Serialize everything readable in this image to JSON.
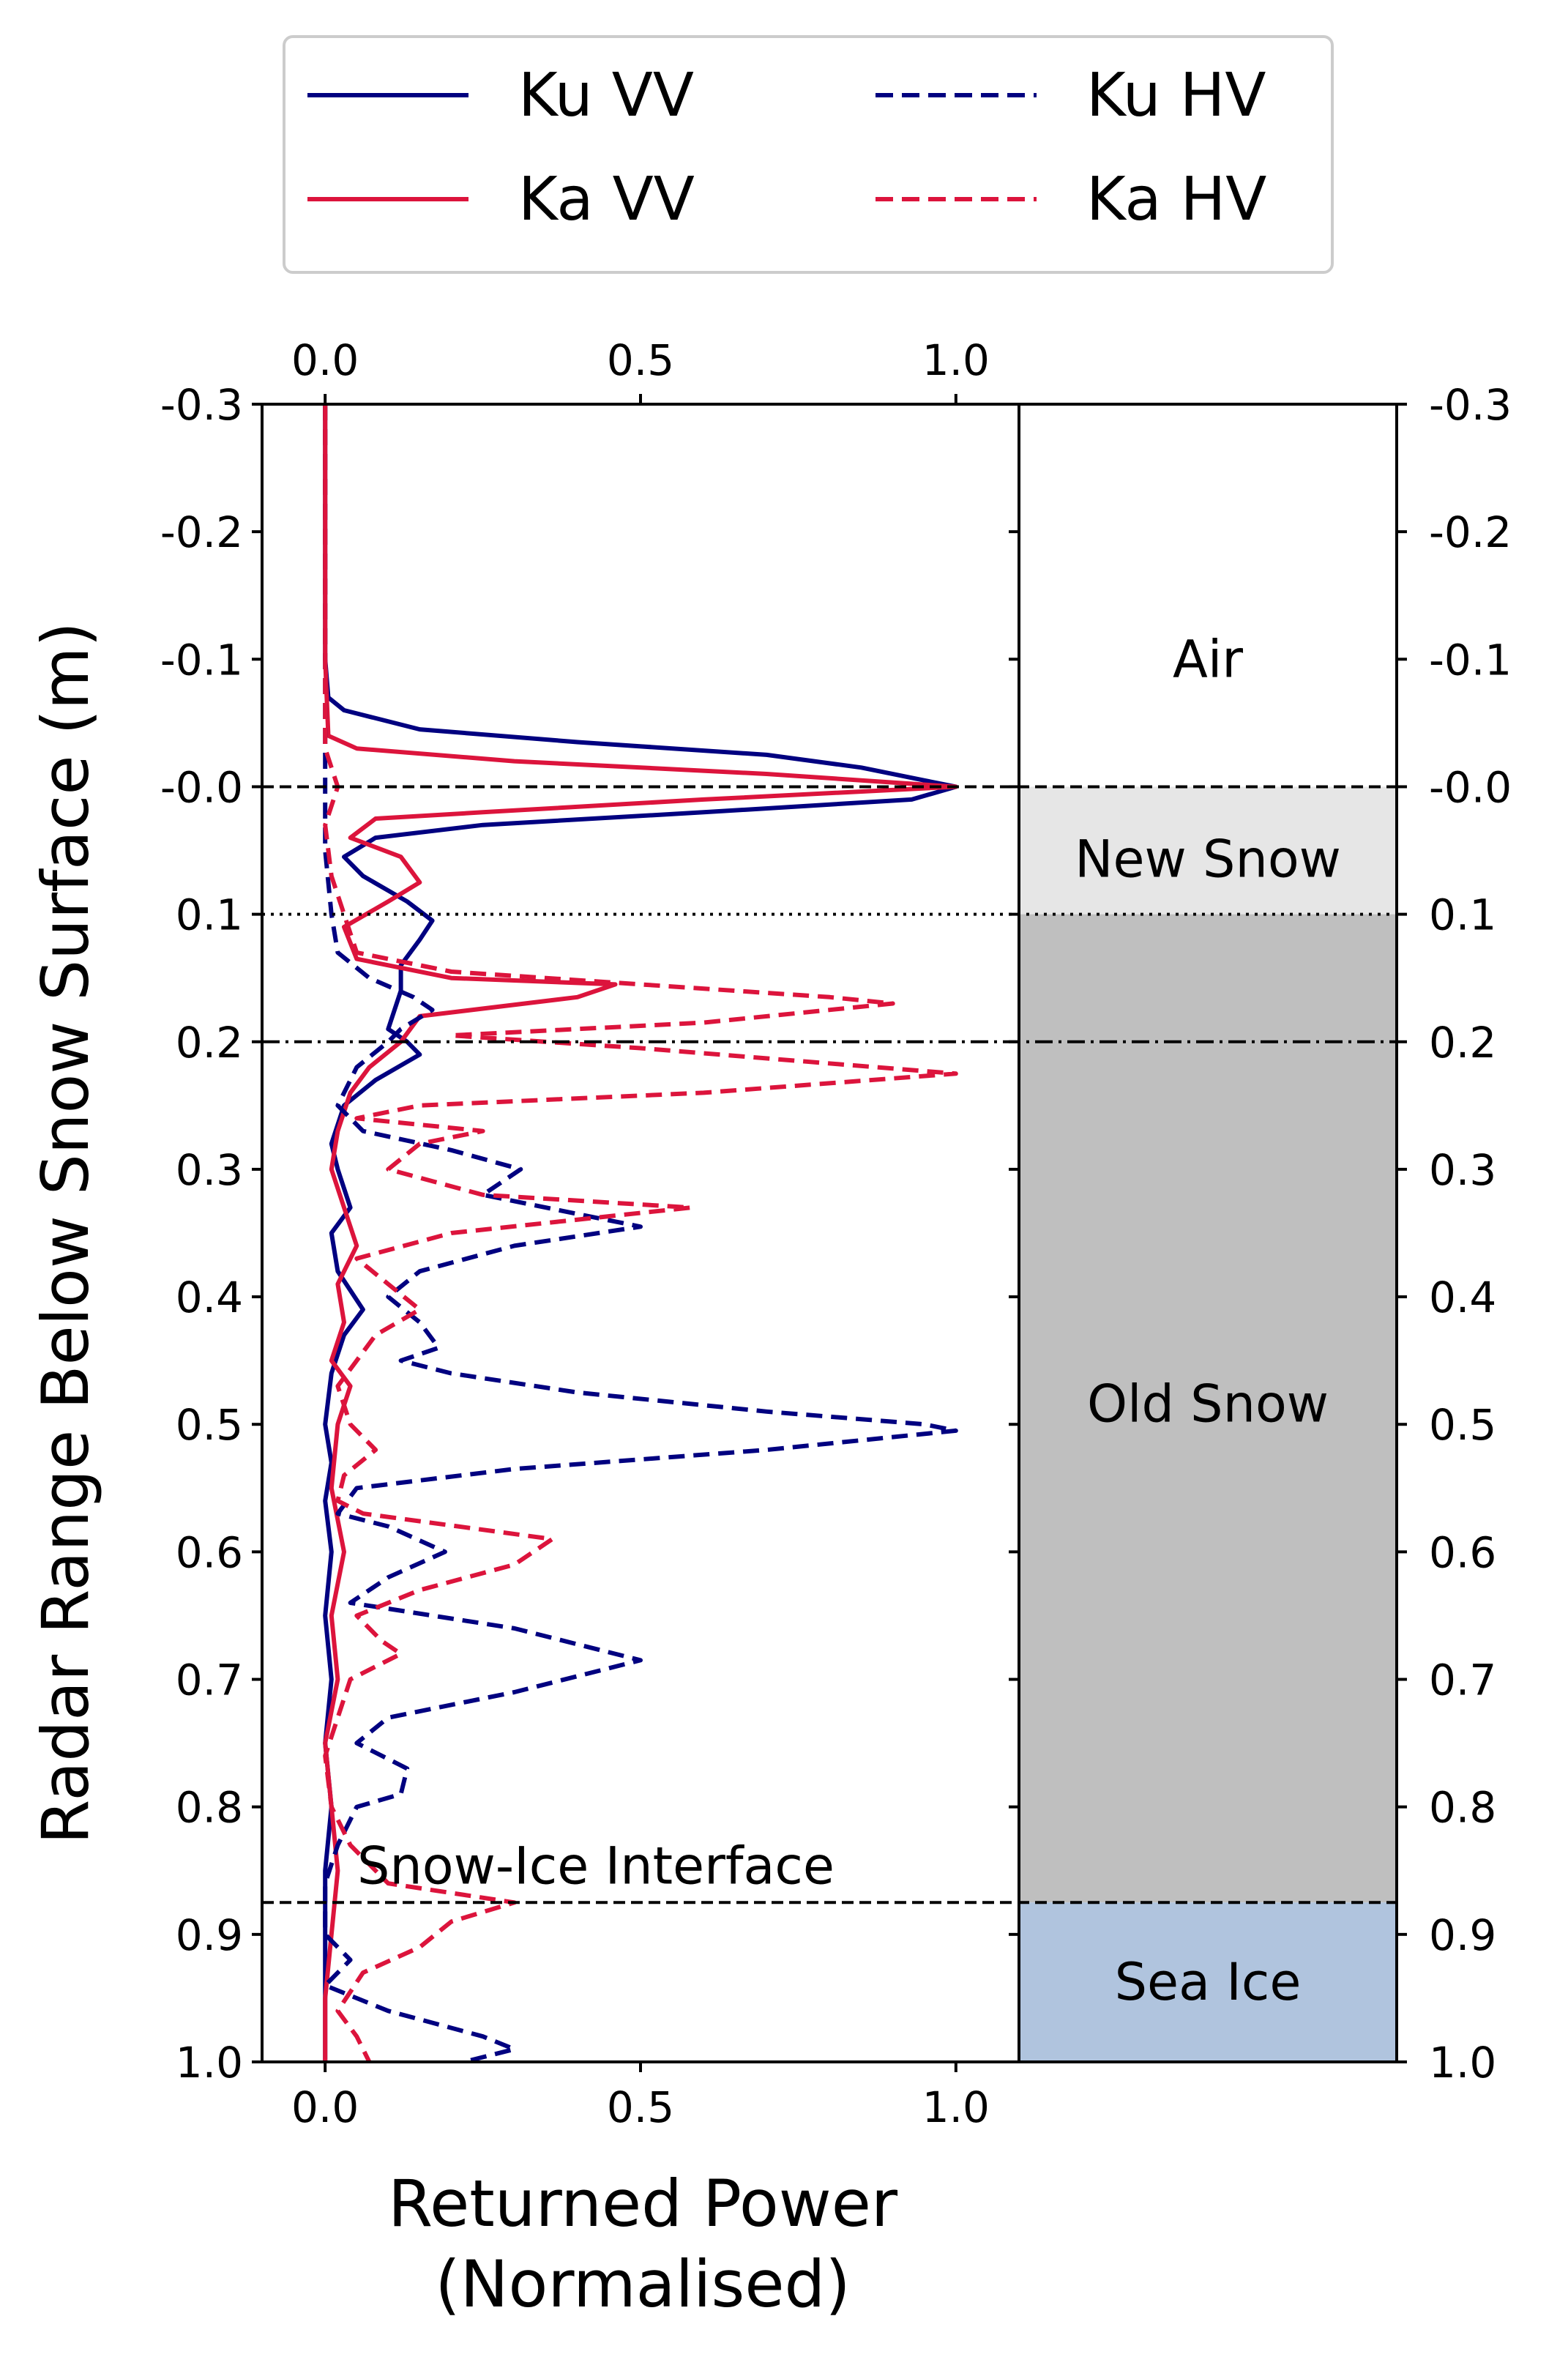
{
  "chart_data": {
    "type": "line",
    "xlabel_line1": "Returned Power",
    "xlabel_line2": "(Normalised)",
    "ylabel": "Radar Range Below Snow Surface (m)",
    "xlim": [
      -0.1,
      1.1
    ],
    "ylim": [
      -0.3,
      1.0
    ],
    "x_ticks": [
      {
        "value": 0.0,
        "label": "0.0"
      },
      {
        "value": 0.5,
        "label": "0.5"
      },
      {
        "value": 1.0,
        "label": "1.0"
      }
    ],
    "y_ticks": [
      {
        "value": -0.3,
        "label": "-0.3"
      },
      {
        "value": -0.2,
        "label": "-0.2"
      },
      {
        "value": -0.1,
        "label": "-0.1"
      },
      {
        "value": 0.0,
        "label": "-0.0"
      },
      {
        "value": 0.1,
        "label": "0.1"
      },
      {
        "value": 0.2,
        "label": "0.2"
      },
      {
        "value": 0.3,
        "label": "0.3"
      },
      {
        "value": 0.4,
        "label": "0.4"
      },
      {
        "value": 0.5,
        "label": "0.5"
      },
      {
        "value": 0.6,
        "label": "0.6"
      },
      {
        "value": 0.7,
        "label": "0.7"
      },
      {
        "value": 0.8,
        "label": "0.8"
      },
      {
        "value": 0.9,
        "label": "0.9"
      },
      {
        "value": 1.0,
        "label": "1.0"
      }
    ],
    "legend_position": "top, outside, 2 columns",
    "colors": {
      "ku": "#000080",
      "ka": "#dc143c",
      "new_snow": "#e6e6e6",
      "old_snow": "#bfbfbf",
      "sea_ice": "#b0c4de",
      "air": "#ffffff"
    },
    "series": [
      {
        "name": "Ku VV",
        "color": "#000080",
        "dash": "solid",
        "points": [
          [
            0.0,
            -0.3
          ],
          [
            0.0,
            -0.2
          ],
          [
            0.0,
            -0.1
          ],
          [
            0.005,
            -0.07
          ],
          [
            0.03,
            -0.06
          ],
          [
            0.15,
            -0.045
          ],
          [
            0.4,
            -0.035
          ],
          [
            0.7,
            -0.025
          ],
          [
            0.85,
            -0.015
          ],
          [
            0.95,
            -0.005
          ],
          [
            1.0,
            0.0
          ],
          [
            0.93,
            0.01
          ],
          [
            0.6,
            0.02
          ],
          [
            0.25,
            0.03
          ],
          [
            0.08,
            0.04
          ],
          [
            0.03,
            0.055
          ],
          [
            0.06,
            0.07
          ],
          [
            0.13,
            0.09
          ],
          [
            0.17,
            0.105
          ],
          [
            0.15,
            0.12
          ],
          [
            0.12,
            0.14
          ],
          [
            0.12,
            0.16
          ],
          [
            0.1,
            0.19
          ],
          [
            0.13,
            0.2
          ],
          [
            0.15,
            0.21
          ],
          [
            0.08,
            0.23
          ],
          [
            0.03,
            0.25
          ],
          [
            0.01,
            0.28
          ],
          [
            0.02,
            0.3
          ],
          [
            0.04,
            0.33
          ],
          [
            0.01,
            0.35
          ],
          [
            0.02,
            0.38
          ],
          [
            0.06,
            0.41
          ],
          [
            0.03,
            0.43
          ],
          [
            0.01,
            0.46
          ],
          [
            0.0,
            0.5
          ],
          [
            0.01,
            0.53
          ],
          [
            0.0,
            0.56
          ],
          [
            0.01,
            0.6
          ],
          [
            0.0,
            0.65
          ],
          [
            0.01,
            0.7
          ],
          [
            0.0,
            0.75
          ],
          [
            0.01,
            0.8
          ],
          [
            0.0,
            0.85
          ],
          [
            0.0,
            0.9
          ],
          [
            0.0,
            0.95
          ],
          [
            0.0,
            1.0
          ]
        ]
      },
      {
        "name": "Ka VV",
        "color": "#dc143c",
        "dash": "solid",
        "points": [
          [
            0.0,
            -0.3
          ],
          [
            0.0,
            -0.2
          ],
          [
            0.0,
            -0.1
          ],
          [
            0.005,
            -0.04
          ],
          [
            0.05,
            -0.03
          ],
          [
            0.3,
            -0.02
          ],
          [
            0.7,
            -0.01
          ],
          [
            1.0,
            0.0
          ],
          [
            0.6,
            0.01
          ],
          [
            0.25,
            0.02
          ],
          [
            0.08,
            0.025
          ],
          [
            0.04,
            0.04
          ],
          [
            0.12,
            0.055
          ],
          [
            0.15,
            0.075
          ],
          [
            0.1,
            0.09
          ],
          [
            0.03,
            0.11
          ],
          [
            0.05,
            0.135
          ],
          [
            0.2,
            0.15
          ],
          [
            0.46,
            0.155
          ],
          [
            0.4,
            0.165
          ],
          [
            0.15,
            0.18
          ],
          [
            0.12,
            0.2
          ],
          [
            0.07,
            0.22
          ],
          [
            0.04,
            0.24
          ],
          [
            0.02,
            0.27
          ],
          [
            0.01,
            0.3
          ],
          [
            0.03,
            0.33
          ],
          [
            0.05,
            0.36
          ],
          [
            0.02,
            0.39
          ],
          [
            0.03,
            0.42
          ],
          [
            0.01,
            0.45
          ],
          [
            0.04,
            0.47
          ],
          [
            0.02,
            0.5
          ],
          [
            0.01,
            0.55
          ],
          [
            0.03,
            0.6
          ],
          [
            0.01,
            0.65
          ],
          [
            0.02,
            0.7
          ],
          [
            0.0,
            0.75
          ],
          [
            0.01,
            0.8
          ],
          [
            0.02,
            0.85
          ],
          [
            0.01,
            0.9
          ],
          [
            0.0,
            0.95
          ],
          [
            0.0,
            1.0
          ]
        ]
      },
      {
        "name": "Ku HV",
        "color": "#000080",
        "dash": "dashed",
        "points": [
          [
            0.0,
            -0.3
          ],
          [
            0.0,
            -0.2
          ],
          [
            0.0,
            -0.1
          ],
          [
            0.0,
            0.0
          ],
          [
            0.0,
            0.05
          ],
          [
            0.01,
            0.1
          ],
          [
            0.02,
            0.13
          ],
          [
            0.07,
            0.15
          ],
          [
            0.14,
            0.165
          ],
          [
            0.17,
            0.175
          ],
          [
            0.12,
            0.19
          ],
          [
            0.1,
            0.2
          ],
          [
            0.05,
            0.22
          ],
          [
            0.02,
            0.25
          ],
          [
            0.06,
            0.27
          ],
          [
            0.2,
            0.285
          ],
          [
            0.31,
            0.3
          ],
          [
            0.25,
            0.32
          ],
          [
            0.35,
            0.33
          ],
          [
            0.5,
            0.345
          ],
          [
            0.3,
            0.36
          ],
          [
            0.15,
            0.38
          ],
          [
            0.1,
            0.4
          ],
          [
            0.15,
            0.42
          ],
          [
            0.18,
            0.44
          ],
          [
            0.12,
            0.45
          ],
          [
            0.2,
            0.46
          ],
          [
            0.4,
            0.475
          ],
          [
            0.7,
            0.49
          ],
          [
            0.95,
            0.5
          ],
          [
            1.0,
            0.505
          ],
          [
            0.7,
            0.52
          ],
          [
            0.3,
            0.535
          ],
          [
            0.05,
            0.55
          ],
          [
            0.02,
            0.57
          ],
          [
            0.1,
            0.58
          ],
          [
            0.19,
            0.6
          ],
          [
            0.1,
            0.62
          ],
          [
            0.04,
            0.64
          ],
          [
            0.3,
            0.66
          ],
          [
            0.5,
            0.685
          ],
          [
            0.3,
            0.71
          ],
          [
            0.1,
            0.73
          ],
          [
            0.05,
            0.75
          ],
          [
            0.13,
            0.77
          ],
          [
            0.12,
            0.79
          ],
          [
            0.05,
            0.8
          ],
          [
            0.02,
            0.83
          ],
          [
            0.0,
            0.86
          ],
          [
            0.0,
            0.9
          ],
          [
            0.04,
            0.92
          ],
          [
            0.0,
            0.94
          ],
          [
            0.1,
            0.96
          ],
          [
            0.25,
            0.98
          ],
          [
            0.3,
            0.99
          ],
          [
            0.22,
            1.0
          ]
        ]
      },
      {
        "name": "Ka HV",
        "color": "#dc143c",
        "dash": "dashed",
        "points": [
          [
            0.0,
            -0.3
          ],
          [
            0.0,
            -0.1
          ],
          [
            0.0,
            -0.03
          ],
          [
            0.02,
            0.0
          ],
          [
            0.0,
            0.03
          ],
          [
            0.01,
            0.07
          ],
          [
            0.03,
            0.1
          ],
          [
            0.05,
            0.13
          ],
          [
            0.2,
            0.145
          ],
          [
            0.5,
            0.155
          ],
          [
            0.8,
            0.165
          ],
          [
            0.9,
            0.17
          ],
          [
            0.6,
            0.185
          ],
          [
            0.2,
            0.195
          ],
          [
            0.5,
            0.205
          ],
          [
            1.0,
            0.225
          ],
          [
            0.6,
            0.24
          ],
          [
            0.15,
            0.25
          ],
          [
            0.05,
            0.26
          ],
          [
            0.25,
            0.27
          ],
          [
            0.15,
            0.28
          ],
          [
            0.1,
            0.3
          ],
          [
            0.25,
            0.32
          ],
          [
            0.58,
            0.33
          ],
          [
            0.2,
            0.35
          ],
          [
            0.05,
            0.37
          ],
          [
            0.1,
            0.39
          ],
          [
            0.15,
            0.41
          ],
          [
            0.08,
            0.43
          ],
          [
            0.05,
            0.45
          ],
          [
            0.02,
            0.47
          ],
          [
            0.04,
            0.5
          ],
          [
            0.08,
            0.52
          ],
          [
            0.03,
            0.54
          ],
          [
            0.02,
            0.56
          ],
          [
            0.06,
            0.57
          ],
          [
            0.36,
            0.59
          ],
          [
            0.3,
            0.61
          ],
          [
            0.15,
            0.63
          ],
          [
            0.05,
            0.65
          ],
          [
            0.09,
            0.67
          ],
          [
            0.12,
            0.68
          ],
          [
            0.04,
            0.7
          ],
          [
            0.02,
            0.73
          ],
          [
            0.0,
            0.76
          ],
          [
            0.01,
            0.8
          ],
          [
            0.04,
            0.83
          ],
          [
            0.1,
            0.86
          ],
          [
            0.3,
            0.875
          ],
          [
            0.2,
            0.89
          ],
          [
            0.15,
            0.91
          ],
          [
            0.06,
            0.93
          ],
          [
            0.02,
            0.96
          ],
          [
            0.05,
            0.98
          ],
          [
            0.07,
            1.0
          ]
        ]
      }
    ],
    "reference_lines": [
      {
        "y": 0.0,
        "style": "dashed"
      },
      {
        "y": 0.1,
        "style": "dotted"
      },
      {
        "y": 0.2,
        "style": "dashdot"
      },
      {
        "y": 0.875,
        "style": "dashed",
        "label": "Snow-Ice Interface"
      }
    ],
    "layers": [
      {
        "name": "Air",
        "from": -0.3,
        "to": 0.0,
        "color": "#ffffff"
      },
      {
        "name": "New Snow",
        "from": 0.0,
        "to": 0.1,
        "color": "#e6e6e6"
      },
      {
        "name": "Old Snow",
        "from": 0.1,
        "to": 0.875,
        "color": "#bfbfbf"
      },
      {
        "name": "Sea Ice",
        "from": 0.875,
        "to": 1.0,
        "color": "#b0c4de"
      }
    ]
  }
}
